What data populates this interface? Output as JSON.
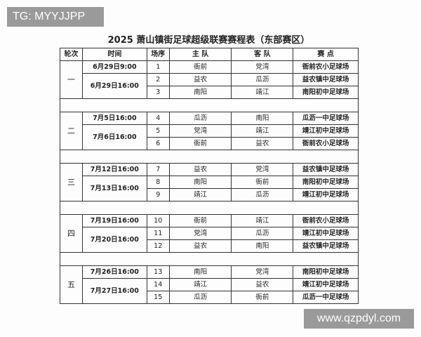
{
  "watermarks": {
    "top_left": "TG: MYYJJPP",
    "bottom_right": "www.qzpdyl.com"
  },
  "title": "2025 萧山镇街足球超级联赛赛程表（东部赛区）",
  "headers": {
    "round": "轮次",
    "time": "时间",
    "match_no": "场序",
    "home": "主  队",
    "away": "客  队",
    "venue": "赛  点"
  },
  "rounds": [
    {
      "round": "一",
      "matches": [
        {
          "time": "6月29日9:00",
          "no": "1",
          "home": "衙前",
          "away": "党湾",
          "venue": "衙前农小足球场"
        },
        {
          "time": "6月29日16:00",
          "no": "2",
          "home": "益农",
          "away": "瓜沥",
          "venue": "益农镇中足球场"
        },
        {
          "time": "",
          "no": "3",
          "home": "南阳",
          "away": "靖江",
          "venue": "南阳初中足球场"
        }
      ]
    },
    {
      "round": "二",
      "matches": [
        {
          "time": "7月5日16:00",
          "no": "4",
          "home": "瓜沥",
          "away": "南阳",
          "venue": "瓜沥一中足球场"
        },
        {
          "time": "7月6日16:00",
          "no": "5",
          "home": "党湾",
          "away": "靖江",
          "venue": "靖江初中足球场"
        },
        {
          "time": "",
          "no": "6",
          "home": "衙前",
          "away": "益农",
          "venue": "衙前农小足球场"
        }
      ]
    },
    {
      "round": "三",
      "matches": [
        {
          "time": "7月12日16:00",
          "no": "7",
          "home": "益农",
          "away": "党湾",
          "venue": "益农镇中足球场"
        },
        {
          "time": "7月13日16:00",
          "no": "8",
          "home": "南阳",
          "away": "衙前",
          "venue": "南阳初中足球场"
        },
        {
          "time": "",
          "no": "9",
          "home": "靖江",
          "away": "瓜沥",
          "venue": "靖江初中足球场"
        }
      ]
    },
    {
      "round": "四",
      "matches": [
        {
          "time": "7月19日16:00",
          "no": "10",
          "home": "衙前",
          "away": "靖江",
          "venue": "衙前农小足球场"
        },
        {
          "time": "7月20日16:00",
          "no": "11",
          "home": "党湾",
          "away": "瓜沥",
          "venue": "靖江初中足球场"
        },
        {
          "time": "",
          "no": "12",
          "home": "益农",
          "away": "南阳",
          "venue": "益农镇中足球场"
        }
      ]
    },
    {
      "round": "五",
      "matches": [
        {
          "time": "7月26日16:00",
          "no": "13",
          "home": "南阳",
          "away": "党湾",
          "venue": "南阳初中足球场"
        },
        {
          "time": "7月27日16:00",
          "no": "14",
          "home": "靖江",
          "away": "益农",
          "venue": "靖江初中足球场"
        },
        {
          "time": "",
          "no": "15",
          "home": "瓜沥",
          "away": "衙前",
          "venue": "瓜沥一中足球场"
        }
      ]
    }
  ]
}
